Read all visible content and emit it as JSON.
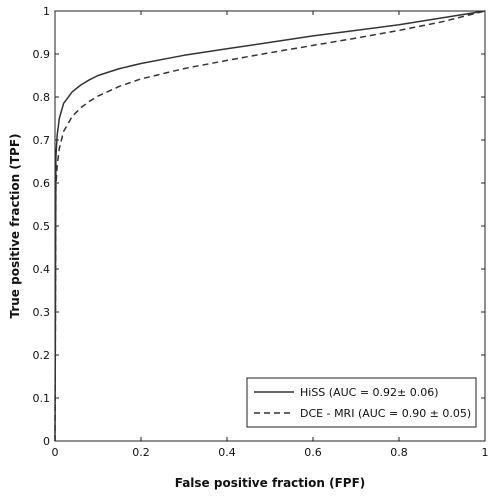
{
  "chart_data": {
    "type": "line",
    "title": "",
    "xlabel": "False positive fraction (FPF)",
    "ylabel": "True positive fraction (TPF)",
    "xlim": [
      0,
      1
    ],
    "ylim": [
      0,
      1
    ],
    "x_ticks": [
      "0",
      "0.2",
      "0.4",
      "0.6",
      "0.8",
      "1"
    ],
    "y_ticks": [
      "0",
      "0.1",
      "0.2",
      "0.3",
      "0.4",
      "0.5",
      "0.6",
      "0.7",
      "0.8",
      "0.9",
      "1"
    ],
    "grid": false,
    "legend_position": "bottom-right",
    "series": [
      {
        "name": "HiSS (AUC = 0.92± 0.06)",
        "style": "solid",
        "color": "#333333",
        "x": [
          0,
          0.002,
          0.005,
          0.01,
          0.02,
          0.04,
          0.06,
          0.08,
          0.1,
          0.15,
          0.2,
          0.3,
          0.4,
          0.5,
          0.6,
          0.7,
          0.8,
          0.9,
          1
        ],
        "y": [
          0,
          0.66,
          0.71,
          0.75,
          0.785,
          0.812,
          0.828,
          0.84,
          0.85,
          0.866,
          0.878,
          0.897,
          0.912,
          0.927,
          0.942,
          0.955,
          0.968,
          0.984,
          1
        ]
      },
      {
        "name": "DCE - MRI (AUC = 0.90 ± 0.05)",
        "style": "dashed",
        "color": "#333333",
        "x": [
          0,
          0.002,
          0.005,
          0.01,
          0.02,
          0.04,
          0.06,
          0.08,
          0.1,
          0.15,
          0.2,
          0.3,
          0.4,
          0.5,
          0.6,
          0.7,
          0.8,
          0.9,
          1
        ],
        "y": [
          0,
          0.59,
          0.64,
          0.68,
          0.72,
          0.755,
          0.775,
          0.79,
          0.802,
          0.825,
          0.842,
          0.866,
          0.885,
          0.903,
          0.92,
          0.937,
          0.955,
          0.975,
          1
        ]
      }
    ]
  }
}
